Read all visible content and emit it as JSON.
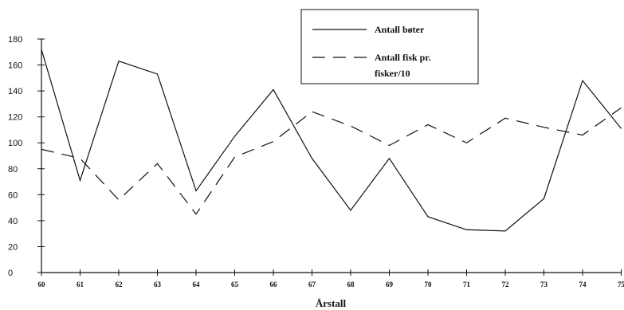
{
  "chart_data": {
    "type": "line",
    "title": "",
    "xlabel": "Årstall",
    "ylabel": "",
    "x": [
      "60",
      "61",
      "62",
      "63",
      "64",
      "65",
      "66",
      "67",
      "68",
      "69",
      "70",
      "71",
      "72",
      "73",
      "74",
      "75"
    ],
    "ylim": [
      0,
      180
    ],
    "yticks": [
      "0",
      "20",
      "40",
      "60",
      "80",
      "100",
      "120",
      "140",
      "160",
      "180"
    ],
    "grid": false,
    "legend_position": "top-right",
    "series": [
      {
        "name": "Antall bøter",
        "style": "solid",
        "color": "#111111",
        "values": [
          172,
          71,
          163,
          153,
          63,
          105,
          141,
          88,
          48,
          88,
          43,
          33,
          32,
          57,
          148,
          111
        ]
      },
      {
        "name": "Antall fisk pr. fisker/10",
        "legend_lines": [
          "Antall fisk pr.",
          "fisker/10"
        ],
        "style": "dashed",
        "color": "#111111",
        "values": [
          95,
          88,
          56,
          84,
          45,
          89,
          101,
          124,
          113,
          98,
          114,
          100,
          119,
          112,
          106,
          127
        ]
      }
    ]
  }
}
